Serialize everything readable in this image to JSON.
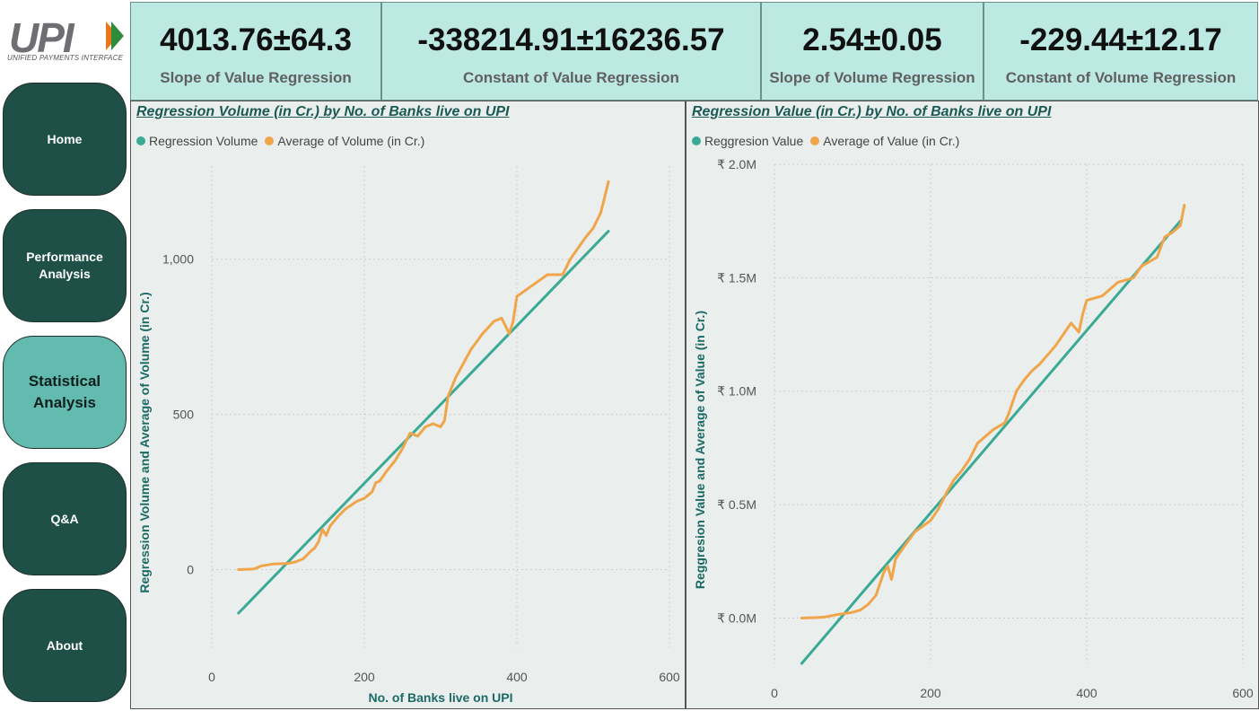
{
  "logo": {
    "text": "UPI",
    "subtitle": "UNIFIED PAYMENTS INTERFACE"
  },
  "nav": [
    {
      "label": "Home"
    },
    {
      "label": "Performance Analysis"
    },
    {
      "label": "Statistical Analysis"
    },
    {
      "label": "Q&A"
    },
    {
      "label": "About"
    }
  ],
  "kpis": [
    {
      "value": "4013.76±64.3",
      "label": "Slope of Value Regression"
    },
    {
      "value": "-338214.91±16236.57",
      "label": "Constant of Value Regression"
    },
    {
      "value": "2.54±0.05",
      "label": "Slope of Volume Regression"
    },
    {
      "value": "-229.44±12.17",
      "label": "Constant of Volume Regression"
    }
  ],
  "colors": {
    "regression": "#3aaa96",
    "average": "#f0a54a",
    "title": "#1a5a55",
    "nav_bg": "#1e5048",
    "nav_active": "#63bbb0",
    "kpi_bg": "#bde9e3"
  },
  "chart_data": [
    {
      "type": "line",
      "title": "Regression Volume (in Cr.) by No. of Banks live on UPI",
      "xlabel": "No. of Banks live on UPI",
      "ylabel": "Regression Volume and Average of Volume (in Cr.)",
      "xlim": [
        0,
        600
      ],
      "ylim": [
        -250,
        1300
      ],
      "xticks": [
        0,
        200,
        400,
        600
      ],
      "xtick_labels": [
        "0",
        "200",
        "400",
        "600"
      ],
      "yticks": [
        0,
        500,
        1000
      ],
      "ytick_labels": [
        "0",
        "500",
        "1,000"
      ],
      "grid": true,
      "legend": "top-left",
      "series": [
        {
          "name": "Regression Volume",
          "x": [
            35,
            520
          ],
          "y": [
            -140,
            1090
          ]
        },
        {
          "name": "Average of Volume (in Cr.)",
          "x": [
            35,
            55,
            65,
            80,
            100,
            110,
            120,
            130,
            135,
            140,
            145,
            150,
            155,
            165,
            175,
            190,
            200,
            210,
            215,
            220,
            230,
            240,
            250,
            260,
            270,
            280,
            290,
            300,
            305,
            310,
            320,
            340,
            355,
            370,
            380,
            390,
            395,
            400,
            440,
            460,
            470,
            490,
            500,
            510,
            515,
            520
          ],
          "y": [
            0,
            2,
            12,
            18,
            20,
            25,
            35,
            60,
            70,
            90,
            130,
            110,
            140,
            170,
            195,
            220,
            230,
            250,
            280,
            285,
            320,
            350,
            390,
            440,
            430,
            460,
            470,
            460,
            480,
            560,
            620,
            710,
            760,
            800,
            810,
            760,
            800,
            880,
            950,
            950,
            1000,
            1070,
            1100,
            1150,
            1200,
            1250
          ]
        }
      ]
    },
    {
      "type": "line",
      "title": "Regression Value (in Cr.) by No. of Banks live on UPI",
      "xlabel": "No. of Banks live on UPI",
      "ylabel": "Reggresion Value and Average of Value (in Cr.)",
      "xlim": [
        0,
        600
      ],
      "ylim": [
        -200000,
        2000000
      ],
      "xticks": [
        0,
        200,
        400,
        600
      ],
      "xtick_labels": [
        "0",
        "200",
        "400",
        "600"
      ],
      "yticks": [
        0,
        500000,
        1000000,
        1500000,
        2000000
      ],
      "ytick_labels": [
        "₹ 0.0M",
        "₹ 0.5M",
        "₹ 1.0M",
        "₹ 1.5M",
        "₹ 2.0M"
      ],
      "grid": true,
      "legend": "top-left",
      "series": [
        {
          "name": "Reggresion Value",
          "x": [
            35,
            520
          ],
          "y": [
            -200000,
            1750000
          ]
        },
        {
          "name": "Average of Value (in Cr.)",
          "x": [
            35,
            55,
            65,
            80,
            100,
            110,
            120,
            130,
            140,
            145,
            150,
            155,
            165,
            180,
            200,
            210,
            220,
            230,
            240,
            250,
            260,
            270,
            280,
            295,
            300,
            305,
            310,
            320,
            330,
            340,
            350,
            360,
            370,
            380,
            390,
            395,
            400,
            420,
            440,
            460,
            470,
            490,
            500,
            510,
            520,
            525
          ],
          "y": [
            0,
            2000,
            5000,
            15000,
            25000,
            35000,
            60000,
            100000,
            200000,
            230000,
            170000,
            260000,
            310000,
            380000,
            430000,
            480000,
            550000,
            610000,
            650000,
            700000,
            770000,
            800000,
            830000,
            860000,
            900000,
            950000,
            1000000,
            1050000,
            1090000,
            1120000,
            1160000,
            1200000,
            1250000,
            1300000,
            1260000,
            1340000,
            1400000,
            1420000,
            1480000,
            1500000,
            1550000,
            1590000,
            1680000,
            1700000,
            1730000,
            1820000
          ]
        }
      ]
    }
  ]
}
